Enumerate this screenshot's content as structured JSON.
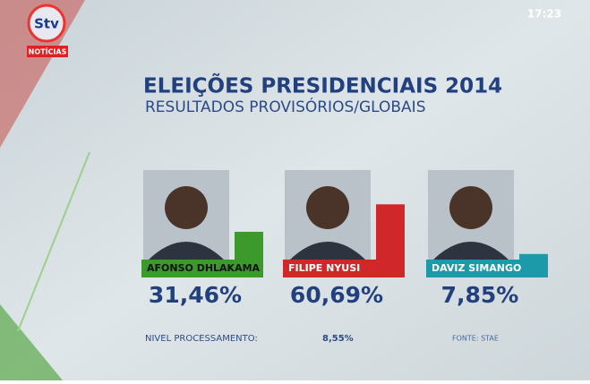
{
  "channel": {
    "logo": "Stv",
    "brand": "NOTÍCIAS",
    "time": "17:23"
  },
  "chart_data": {
    "type": "bar",
    "title": "ELEIÇÕES PRESIDENCIAIS 2014",
    "subtitle": "RESULTADOS PROVISÓRIOS/GLOBAIS",
    "categories": [
      "AFONSO DHLAKAMA",
      "FILIPE NYUSI",
      "DAVIZ SIMANGO"
    ],
    "values": [
      31.46,
      60.69,
      7.85
    ],
    "value_labels": [
      "31,46%",
      "60,69%",
      "7,85%"
    ],
    "colors": [
      "#3c9a2c",
      "#d0282a",
      "#1d9aaa"
    ]
  },
  "footer": {
    "processing_label": "NIVEL PROCESSAMENTO:",
    "processing_value": "8,55%",
    "source": "FONTE: STAE"
  }
}
